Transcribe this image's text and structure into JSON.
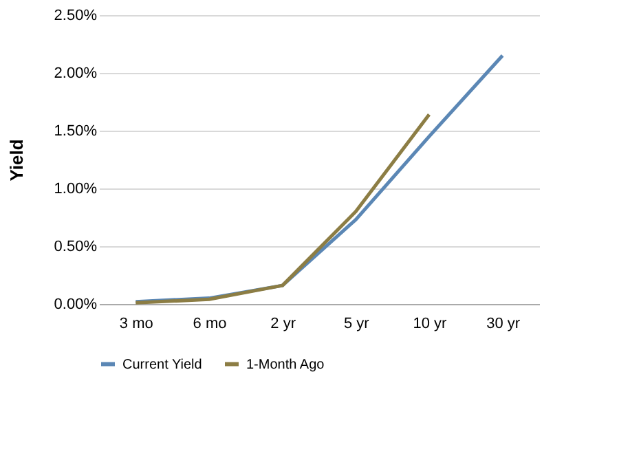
{
  "chart_data": {
    "type": "line",
    "ylabel": "Yield",
    "categories": [
      "3 mo",
      "6 mo",
      "2 yr",
      "5 yr",
      "10 yr",
      "30 yr"
    ],
    "series": [
      {
        "name": "Current Yield",
        "color": "#5b87b5",
        "values": [
          0.02,
          0.05,
          0.16,
          0.73,
          1.45,
          2.15
        ]
      },
      {
        "name": "1-Month Ago",
        "color": "#8c7d44",
        "values": [
          0.01,
          0.04,
          0.16,
          0.8,
          1.64,
          null
        ]
      }
    ],
    "ylim": [
      0,
      2.5
    ],
    "yticks": [
      {
        "value": 0,
        "label": "0.00%"
      },
      {
        "value": 0.5,
        "label": "0.50%"
      },
      {
        "value": 1,
        "label": "1.00%"
      },
      {
        "value": 1.5,
        "label": "1.50%"
      },
      {
        "value": 2,
        "label": "2.00%"
      },
      {
        "value": 2.5,
        "label": "2.50%"
      }
    ],
    "grid": "y",
    "legend": "bottom",
    "marker": "none",
    "line_style": "solid"
  }
}
